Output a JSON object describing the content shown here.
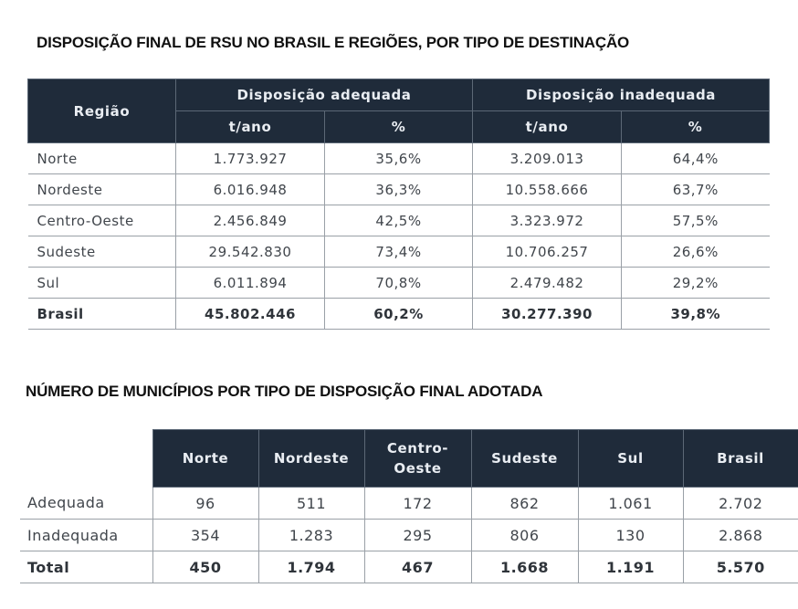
{
  "table1": {
    "title": "DISPOSIÇÃO FINAL DE RSU NO BRASIL E REGIÕES, POR TIPO DE DESTINAÇÃO",
    "header": {
      "region": "Região",
      "group_adequate": "Disposição adequada",
      "group_inadequate": "Disposição inadequada",
      "sub_tons_1": "t/ano",
      "sub_pct_1": "%",
      "sub_tons_2": "t/ano",
      "sub_pct_2": "%"
    },
    "rows": [
      {
        "region": "Norte",
        "adequate_tons": "1.773.927",
        "adequate_pct": "35,6%",
        "inadequate_tons": "3.209.013",
        "inadequate_pct": "64,4%"
      },
      {
        "region": "Nordeste",
        "adequate_tons": "6.016.948",
        "adequate_pct": "36,3%",
        "inadequate_tons": "10.558.666",
        "inadequate_pct": "63,7%"
      },
      {
        "region": "Centro-Oeste",
        "adequate_tons": "2.456.849",
        "adequate_pct": "42,5%",
        "inadequate_tons": "3.323.972",
        "inadequate_pct": "57,5%"
      },
      {
        "region": "Sudeste",
        "adequate_tons": "29.542.830",
        "adequate_pct": "73,4%",
        "inadequate_tons": "10.706.257",
        "inadequate_pct": "26,6%"
      },
      {
        "region": "Sul",
        "adequate_tons": "6.011.894",
        "adequate_pct": "70,8%",
        "inadequate_tons": "2.479.482",
        "inadequate_pct": "29,2%"
      },
      {
        "region": "Brasil",
        "adequate_tons": "45.802.446",
        "adequate_pct": "60,2%",
        "inadequate_tons": "30.277.390",
        "inadequate_pct": "39,8%"
      }
    ]
  },
  "table2": {
    "title": "NÚMERO DE MUNICÍPIOS POR TIPO DE DISPOSIÇÃO FINAL ADOTADA",
    "columns": [
      "Norte",
      "Nordeste",
      "Centro-\nOeste",
      "Sudeste",
      "Sul",
      "Brasil"
    ],
    "column_line1": [
      "Norte",
      "Nordeste",
      "Centro-",
      "Sudeste",
      "Sul",
      "Brasil"
    ],
    "column_line2": [
      "",
      "",
      "Oeste",
      "",
      "",
      ""
    ],
    "rows": [
      {
        "label": "Adequada",
        "values": [
          "96",
          "511",
          "172",
          "862",
          "1.061",
          "2.702"
        ]
      },
      {
        "label": "Inadequada",
        "values": [
          "354",
          "1.283",
          "295",
          "806",
          "130",
          "2.868"
        ]
      },
      {
        "label": "Total",
        "values": [
          "450",
          "1.794",
          "467",
          "1.668",
          "1.191",
          "5.570"
        ]
      }
    ]
  },
  "colors": {
    "header_bg": "#1f2b3a",
    "header_text": "#e9edf2",
    "body_text": "#41464c",
    "rule": "#9aa0a7"
  }
}
